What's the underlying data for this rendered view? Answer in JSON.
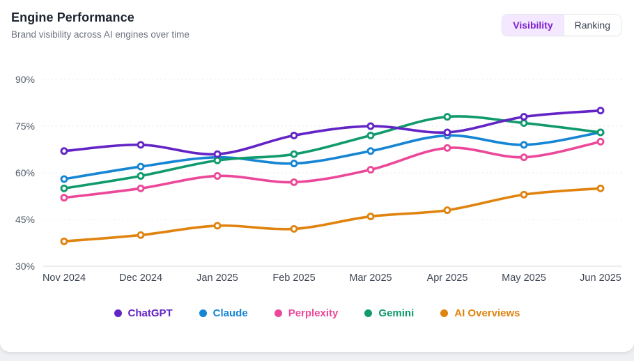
{
  "header": {
    "title": "Engine Performance",
    "subtitle": "Brand visibility across AI engines over time",
    "toggle": {
      "options": [
        {
          "label": "Visibility",
          "active": true
        },
        {
          "label": "Ranking",
          "active": false
        }
      ],
      "active_bg": "#f3e8ff",
      "active_color": "#7e22ce"
    }
  },
  "chart_data": {
    "type": "line",
    "title": "Engine Performance",
    "subtitle": "Brand visibility across AI engines over time",
    "x": [
      "Nov 2024",
      "Dec 2024",
      "Jan 2025",
      "Feb 2025",
      "Mar 2025",
      "Apr 2025",
      "May 2025",
      "Jun 2025"
    ],
    "series": [
      {
        "name": "ChatGPT",
        "color": "#6324c6",
        "values": [
          67,
          69,
          66,
          72,
          75,
          73,
          78,
          80
        ]
      },
      {
        "name": "Claude",
        "color": "#1585d4",
        "values": [
          58,
          62,
          65,
          63,
          67,
          72,
          69,
          73
        ]
      },
      {
        "name": "Perplexity",
        "color": "#ec4899",
        "values": [
          52,
          55,
          59,
          57,
          61,
          68,
          65,
          70
        ]
      },
      {
        "name": "Gemini",
        "color": "#109a6d",
        "values": [
          55,
          59,
          64,
          66,
          72,
          78,
          76,
          73
        ]
      },
      {
        "name": "AI Overviews",
        "color": "#e0830f",
        "values": [
          38,
          40,
          43,
          42,
          46,
          48,
          53,
          55
        ]
      }
    ],
    "ylim": [
      30,
      90
    ],
    "y_ticks": [
      30,
      45,
      60,
      75,
      90
    ],
    "unit": "%",
    "grid": "horizontal-dashed",
    "grid_color": "#e8eaee",
    "baseline_color": "#d7dbe0",
    "tick_label_color": "#525b68",
    "legend_position": "bottom"
  }
}
